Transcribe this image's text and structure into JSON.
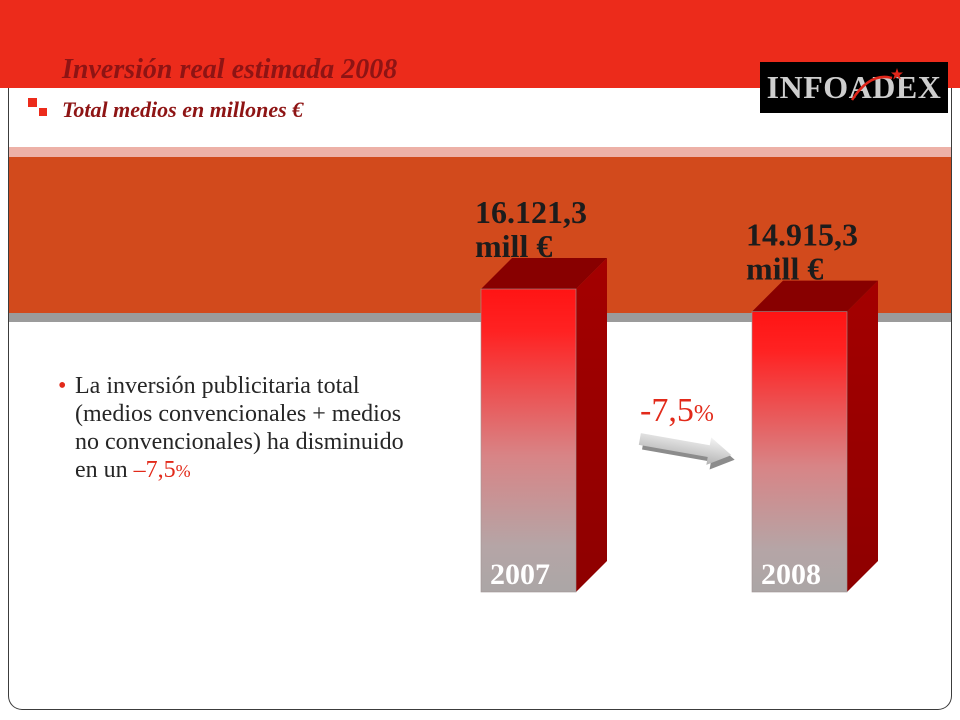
{
  "colors": {
    "header_red": "#EC2B1B",
    "band_orange": "#D24A1C",
    "accent_red": "#E22A1A",
    "title_red": "#8E1414",
    "bar_top_red": "#FF1414",
    "bar_side_red": "#A40000"
  },
  "header": {
    "logo_text": "INFOADEX"
  },
  "bullet": {
    "marker": "•",
    "lines": [
      "La inversión publicitaria total",
      "(medios convencionales + medios",
      "no convencionales) ha disminuido",
      "en un"
    ],
    "highlight_number": "–7,5",
    "highlight_symbol": "%"
  },
  "chart_data": {
    "type": "bar",
    "title": "Inversión real estimada 2008",
    "subtitle": "Total medios en millones €",
    "categories": [
      "2007",
      "2008"
    ],
    "values": [
      16121.3,
      14915.3
    ],
    "value_labels": [
      "16.121,3",
      "14.915,3"
    ],
    "value_unit_label": "mill €",
    "change_label": {
      "number": "-7,5",
      "symbol": "%"
    },
    "grid": false
  }
}
